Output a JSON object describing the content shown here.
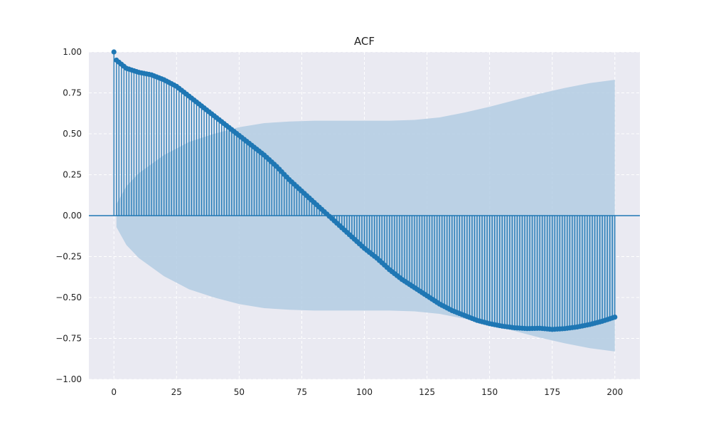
{
  "chart_data": {
    "type": "stem",
    "title": "ACF",
    "xlabel": "",
    "ylabel": "",
    "xlim": [
      -10,
      210
    ],
    "ylim": [
      -1.0,
      1.0
    ],
    "xticks": [
      0,
      25,
      50,
      75,
      100,
      125,
      150,
      175,
      200
    ],
    "xtick_labels": [
      "0",
      "25",
      "50",
      "75",
      "100",
      "125",
      "150",
      "175",
      "200"
    ],
    "yticks": [
      -1.0,
      -0.75,
      -0.5,
      -0.25,
      0.0,
      0.25,
      0.5,
      0.75,
      1.0
    ],
    "ytick_labels": [
      "−1.00",
      "−0.75",
      "−0.50",
      "−0.25",
      "0.00",
      "0.25",
      "0.50",
      "0.75",
      "1.00"
    ],
    "grid": true,
    "colors": {
      "stem": "#1f77b4",
      "confidence_band": "#b3cde3",
      "plot_background": "#eaeaf2",
      "grid": "#ffffff"
    },
    "acf_lags": [
      0,
      1,
      5,
      10,
      15,
      20,
      25,
      30,
      35,
      40,
      45,
      50,
      55,
      60,
      65,
      70,
      75,
      80,
      85,
      90,
      95,
      100,
      105,
      110,
      115,
      120,
      125,
      130,
      135,
      140,
      145,
      150,
      155,
      160,
      165,
      170,
      175,
      180,
      185,
      190,
      195,
      200
    ],
    "acf_values": [
      1.0,
      0.95,
      0.9,
      0.875,
      0.86,
      0.83,
      0.79,
      0.73,
      0.67,
      0.61,
      0.55,
      0.49,
      0.43,
      0.37,
      0.3,
      0.22,
      0.15,
      0.08,
      0.01,
      -0.06,
      -0.13,
      -0.2,
      -0.26,
      -0.33,
      -0.39,
      -0.44,
      -0.49,
      -0.54,
      -0.58,
      -0.61,
      -0.64,
      -0.66,
      -0.675,
      -0.685,
      -0.69,
      -0.688,
      -0.695,
      -0.69,
      -0.68,
      -0.665,
      -0.645,
      -0.62
    ],
    "confidence_lags": [
      1,
      5,
      10,
      20,
      30,
      40,
      50,
      60,
      70,
      80,
      90,
      100,
      110,
      120,
      130,
      140,
      150,
      160,
      170,
      180,
      190,
      200
    ],
    "confidence_upper": [
      0.07,
      0.18,
      0.26,
      0.37,
      0.45,
      0.5,
      0.54,
      0.565,
      0.575,
      0.58,
      0.58,
      0.58,
      0.58,
      0.585,
      0.6,
      0.63,
      0.665,
      0.705,
      0.745,
      0.78,
      0.81,
      0.83
    ]
  }
}
